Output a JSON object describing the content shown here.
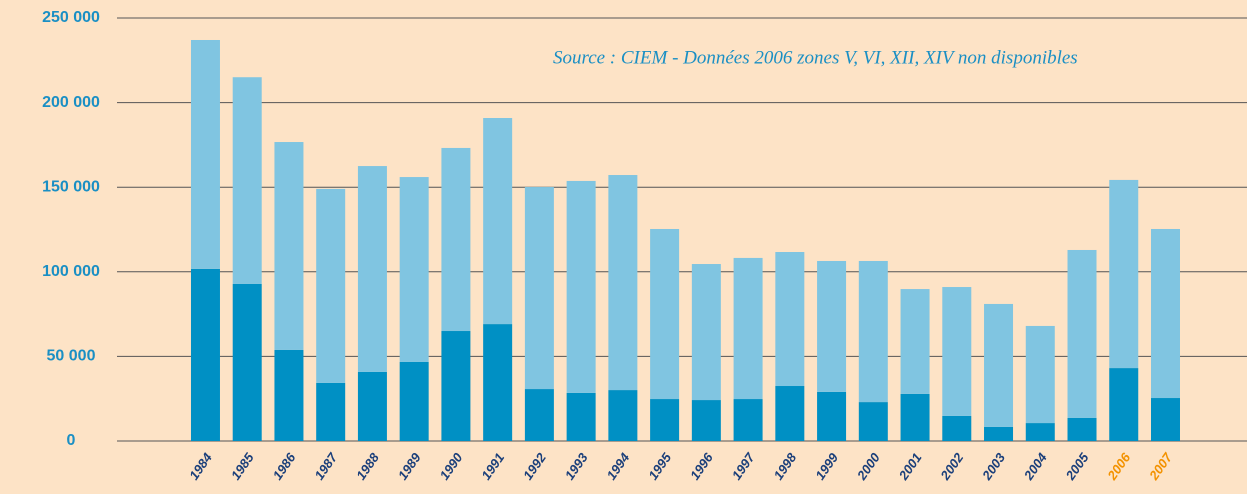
{
  "chart_data": {
    "type": "stacked_bar",
    "annotation": "Source : CIEM - Données 2006 zones V, VI, XII, XIV non disponibles",
    "categories": [
      "1984",
      "1985",
      "1986",
      "1987",
      "1988",
      "1989",
      "1990",
      "1991",
      "1992",
      "1993",
      "1994",
      "1995",
      "1996",
      "1997",
      "1998",
      "1999",
      "2000",
      "2001",
      "2002",
      "2003",
      "2004",
      "2005",
      "2006",
      "2007"
    ],
    "category_label_colors": [
      "#1b3f7a",
      "#1b3f7a",
      "#1b3f7a",
      "#1b3f7a",
      "#1b3f7a",
      "#1b3f7a",
      "#1b3f7a",
      "#1b3f7a",
      "#1b3f7a",
      "#1b3f7a",
      "#1b3f7a",
      "#1b3f7a",
      "#1b3f7a",
      "#1b3f7a",
      "#1b3f7a",
      "#1b3f7a",
      "#1b3f7a",
      "#1b3f7a",
      "#1b3f7a",
      "#1b3f7a",
      "#1b3f7a",
      "#1b3f7a",
      "#f39200",
      "#f39200"
    ],
    "series": [
      {
        "color": "#0090c4",
        "values": [
          101700,
          92800,
          53800,
          34300,
          40800,
          46700,
          65000,
          69100,
          30700,
          28400,
          30100,
          24800,
          24200,
          24800,
          32500,
          29000,
          23000,
          27800,
          14800,
          8300,
          10600,
          13600,
          43100,
          25400
        ]
      },
      {
        "color": "#80c5e1",
        "values": [
          135300,
          122200,
          122900,
          114700,
          121700,
          109300,
          108200,
          121800,
          119400,
          125300,
          127100,
          100500,
          80400,
          83400,
          79200,
          77400,
          83400,
          62000,
          76200,
          72700,
          57400,
          99300,
          111200,
          99900
        ]
      }
    ],
    "ylim": [
      0,
      250000
    ],
    "yticks": [
      0,
      {
        "value": 50000,
        "label": "50 000"
      },
      {
        "value": 100000,
        "label": "100 000"
      },
      {
        "value": 150000,
        "label": "150 000"
      },
      {
        "value": 200000,
        "label": "200 000"
      },
      {
        "value": 250000,
        "label": "250 000"
      }
    ],
    "grid": true
  }
}
